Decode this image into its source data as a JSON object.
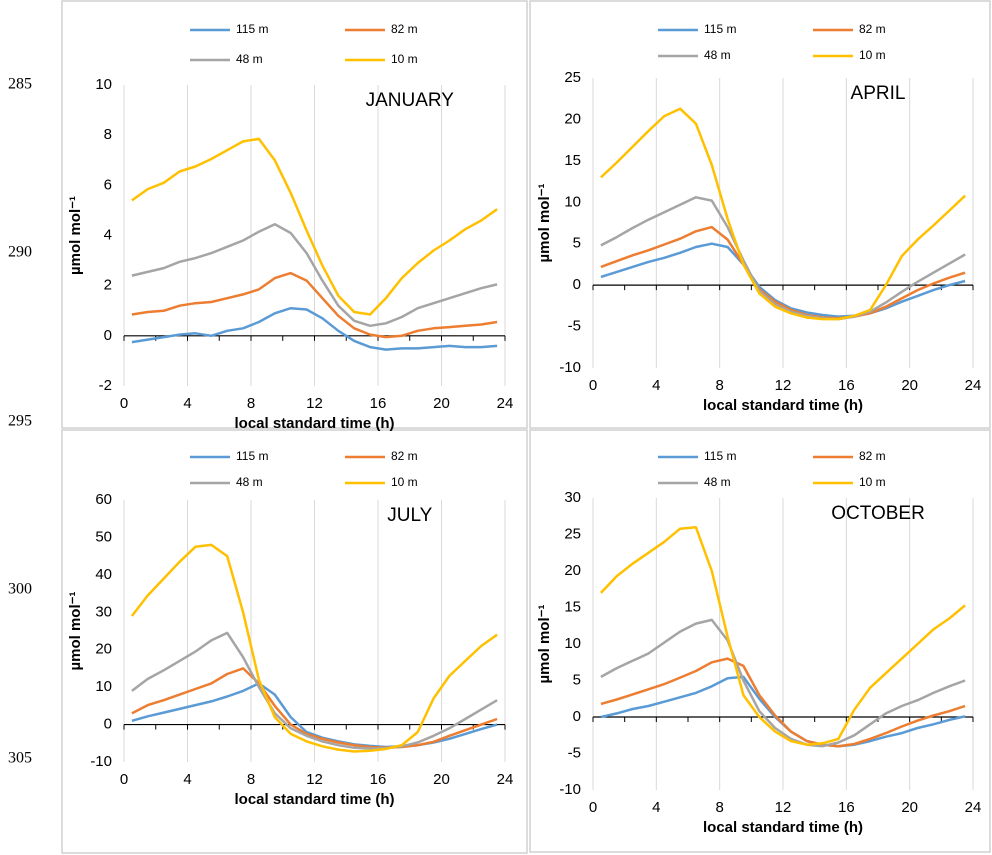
{
  "line_numbers": [
    285,
    290,
    295,
    300,
    305
  ],
  "chart_data": [
    {
      "type": "line",
      "title": "JANUARY",
      "x_label": "local standard time (h)",
      "y_label": "µmol mol⁻¹",
      "x": [
        0.5,
        1.5,
        2.5,
        3.5,
        4.5,
        5.5,
        6.5,
        7.5,
        8.5,
        9.5,
        10.5,
        11.5,
        12.5,
        13.5,
        14.5,
        15.5,
        16.5,
        17.5,
        18.5,
        19.5,
        20.5,
        21.5,
        22.5,
        23.5
      ],
      "xlim": [
        0,
        24
      ],
      "xticks": [
        0,
        4,
        8,
        12,
        16,
        20,
        24
      ],
      "ylim": [
        -2,
        10
      ],
      "yticks": [
        -2,
        0,
        2,
        4,
        6,
        8,
        10
      ],
      "grid": true,
      "series": [
        {
          "name": "115 m",
          "color": "#5b9bd5",
          "values": [
            -0.25,
            -0.15,
            -0.05,
            0.05,
            0.1,
            0.0,
            0.2,
            0.3,
            0.55,
            0.9,
            1.1,
            1.05,
            0.7,
            0.2,
            -0.2,
            -0.45,
            -0.55,
            -0.5,
            -0.5,
            -0.45,
            -0.4,
            -0.45,
            -0.45,
            -0.4
          ]
        },
        {
          "name": "82 m",
          "color": "#ed7d31",
          "values": [
            0.85,
            0.95,
            1.0,
            1.2,
            1.3,
            1.35,
            1.5,
            1.65,
            1.85,
            2.3,
            2.5,
            2.2,
            1.5,
            0.8,
            0.3,
            0.05,
            -0.05,
            0.0,
            0.2,
            0.3,
            0.35,
            0.4,
            0.45,
            0.55
          ]
        },
        {
          "name": "48 m",
          "color": "#a5a5a5",
          "values": [
            2.4,
            2.55,
            2.7,
            2.95,
            3.1,
            3.3,
            3.55,
            3.8,
            4.15,
            4.45,
            4.1,
            3.3,
            2.2,
            1.2,
            0.6,
            0.4,
            0.5,
            0.75,
            1.1,
            1.3,
            1.5,
            1.7,
            1.9,
            2.05
          ]
        },
        {
          "name": "10 m",
          "color": "#ffc000",
          "values": [
            5.4,
            5.85,
            6.1,
            6.55,
            6.75,
            7.05,
            7.4,
            7.75,
            7.85,
            7.0,
            5.7,
            4.2,
            2.8,
            1.6,
            0.95,
            0.85,
            1.5,
            2.3,
            2.9,
            3.4,
            3.8,
            4.25,
            4.6,
            5.05
          ]
        }
      ]
    },
    {
      "type": "line",
      "title": "APRIL",
      "x_label": "local standard time (h)",
      "y_label": "µmol mol⁻¹",
      "x": [
        0.5,
        1.5,
        2.5,
        3.5,
        4.5,
        5.5,
        6.5,
        7.5,
        8.5,
        9.5,
        10.5,
        11.5,
        12.5,
        13.5,
        14.5,
        15.5,
        16.5,
        17.5,
        18.5,
        19.5,
        20.5,
        21.5,
        22.5,
        23.5
      ],
      "xlim": [
        0,
        24
      ],
      "xticks": [
        0,
        4,
        8,
        12,
        16,
        20,
        24
      ],
      "ylim": [
        -10,
        25
      ],
      "yticks": [
        -10,
        -5,
        0,
        5,
        10,
        15,
        20,
        25
      ],
      "grid": true,
      "series": [
        {
          "name": "115 m",
          "color": "#5b9bd5",
          "values": [
            1.0,
            1.6,
            2.2,
            2.8,
            3.3,
            3.9,
            4.6,
            5.0,
            4.6,
            2.5,
            -0.2,
            -1.8,
            -2.8,
            -3.3,
            -3.6,
            -3.8,
            -3.7,
            -3.4,
            -2.8,
            -2.0,
            -1.3,
            -0.6,
            0.0,
            0.5
          ]
        },
        {
          "name": "82 m",
          "color": "#ed7d31",
          "values": [
            2.2,
            2.9,
            3.6,
            4.2,
            4.9,
            5.6,
            6.5,
            7.0,
            5.5,
            2.5,
            -0.5,
            -2.0,
            -3.0,
            -3.6,
            -3.9,
            -4.0,
            -3.8,
            -3.4,
            -2.6,
            -1.6,
            -0.6,
            0.2,
            0.9,
            1.5
          ]
        },
        {
          "name": "48 m",
          "color": "#a5a5a5",
          "values": [
            4.8,
            5.8,
            6.9,
            7.9,
            8.8,
            9.7,
            10.6,
            10.2,
            7.0,
            3.0,
            -0.7,
            -2.3,
            -3.2,
            -3.7,
            -4.0,
            -4.1,
            -3.8,
            -3.2,
            -2.1,
            -0.8,
            0.4,
            1.5,
            2.6,
            3.7
          ]
        },
        {
          "name": "10 m",
          "color": "#ffc000",
          "values": [
            13.0,
            14.8,
            16.7,
            18.6,
            20.4,
            21.3,
            19.5,
            14.5,
            8.0,
            2.5,
            -1.0,
            -2.6,
            -3.4,
            -3.9,
            -4.1,
            -4.1,
            -3.7,
            -3.0,
            0.0,
            3.5,
            5.5,
            7.2,
            9.0,
            10.8
          ]
        }
      ]
    },
    {
      "type": "line",
      "title": "JULY",
      "x_label": "local standard time (h)",
      "y_label": "µmol mol⁻¹",
      "x": [
        0.5,
        1.5,
        2.5,
        3.5,
        4.5,
        5.5,
        6.5,
        7.5,
        8.5,
        9.5,
        10.5,
        11.5,
        12.5,
        13.5,
        14.5,
        15.5,
        16.5,
        17.5,
        18.5,
        19.5,
        20.5,
        21.5,
        22.5,
        23.5
      ],
      "xlim": [
        0,
        24
      ],
      "xticks": [
        0,
        4,
        8,
        12,
        16,
        20,
        24
      ],
      "ylim": [
        -10,
        60
      ],
      "yticks": [
        -10,
        0,
        10,
        20,
        30,
        40,
        50,
        60
      ],
      "grid": true,
      "series": [
        {
          "name": "115 m",
          "color": "#5b9bd5",
          "values": [
            1,
            2.2,
            3.2,
            4.2,
            5.2,
            6.2,
            7.5,
            9,
            11,
            8,
            2,
            -2,
            -3.5,
            -4.5,
            -5.3,
            -5.7,
            -6,
            -5.8,
            -5.5,
            -4.8,
            -3.8,
            -2.5,
            -1.2,
            0
          ]
        },
        {
          "name": "82 m",
          "color": "#ed7d31",
          "values": [
            3,
            5.2,
            6.5,
            8,
            9.5,
            11,
            13.5,
            15,
            11,
            5,
            0,
            -2.5,
            -3.8,
            -4.8,
            -5.5,
            -6,
            -6.2,
            -6,
            -5.5,
            -4.6,
            -3,
            -1.5,
            0,
            1.5
          ]
        },
        {
          "name": "48 m",
          "color": "#a5a5a5",
          "values": [
            9,
            12.2,
            14.5,
            17,
            19.5,
            22.5,
            24.5,
            18,
            10,
            3,
            -1,
            -3,
            -4.5,
            -5.5,
            -6.2,
            -6.4,
            -6.3,
            -5.8,
            -4.8,
            -3,
            -1,
            1.5,
            4,
            6.5
          ]
        },
        {
          "name": "10 m",
          "color": "#ffc000",
          "values": [
            29,
            34.5,
            39,
            43.5,
            47.5,
            48,
            45,
            30,
            12,
            2,
            -2.5,
            -4.5,
            -5.8,
            -6.7,
            -7.2,
            -7,
            -6.5,
            -5.5,
            -2,
            7,
            13,
            17,
            21,
            24
          ]
        }
      ]
    },
    {
      "type": "line",
      "title": "OCTOBER",
      "x_label": "local standard time (h)",
      "y_label": "µmol mol⁻¹",
      "x": [
        0.5,
        1.5,
        2.5,
        3.5,
        4.5,
        5.5,
        6.5,
        7.5,
        8.5,
        9.5,
        10.5,
        11.5,
        12.5,
        13.5,
        14.5,
        15.5,
        16.5,
        17.5,
        18.5,
        19.5,
        20.5,
        21.5,
        22.5,
        23.5
      ],
      "xlim": [
        0,
        24
      ],
      "xticks": [
        0,
        4,
        8,
        12,
        16,
        20,
        24
      ],
      "ylim": [
        -10,
        30
      ],
      "yticks": [
        -10,
        -5,
        0,
        5,
        10,
        15,
        20,
        25,
        30
      ],
      "grid": true,
      "series": [
        {
          "name": "115 m",
          "color": "#5b9bd5",
          "values": [
            0,
            0.5,
            1.1,
            1.5,
            2.1,
            2.7,
            3.3,
            4.2,
            5.3,
            5.5,
            2.5,
            0,
            -2,
            -3.3,
            -3.8,
            -4,
            -3.8,
            -3.3,
            -2.7,
            -2.2,
            -1.5,
            -1,
            -0.4,
            0.1
          ]
        },
        {
          "name": "82 m",
          "color": "#ed7d31",
          "values": [
            1.8,
            2.4,
            3.1,
            3.8,
            4.5,
            5.4,
            6.3,
            7.5,
            8,
            7,
            3,
            0.2,
            -2,
            -3.3,
            -3.8,
            -4,
            -3.7,
            -3,
            -2.2,
            -1.3,
            -0.5,
            0.2,
            0.8,
            1.5
          ]
        },
        {
          "name": "48 m",
          "color": "#a5a5a5",
          "values": [
            5.5,
            6.7,
            7.7,
            8.7,
            10.2,
            11.7,
            12.8,
            13.3,
            10.5,
            5,
            0.8,
            -1.5,
            -3,
            -3.8,
            -4,
            -3.5,
            -2.5,
            -1,
            0.5,
            1.5,
            2.3,
            3.3,
            4.2,
            5
          ]
        },
        {
          "name": "10 m",
          "color": "#ffc000",
          "values": [
            17,
            19.3,
            21,
            22.5,
            24,
            25.8,
            26,
            20,
            11,
            3,
            0,
            -2,
            -3.3,
            -3.8,
            -3.6,
            -3,
            1,
            4,
            6,
            8,
            10,
            12,
            13.5,
            15.3
          ]
        }
      ]
    }
  ]
}
